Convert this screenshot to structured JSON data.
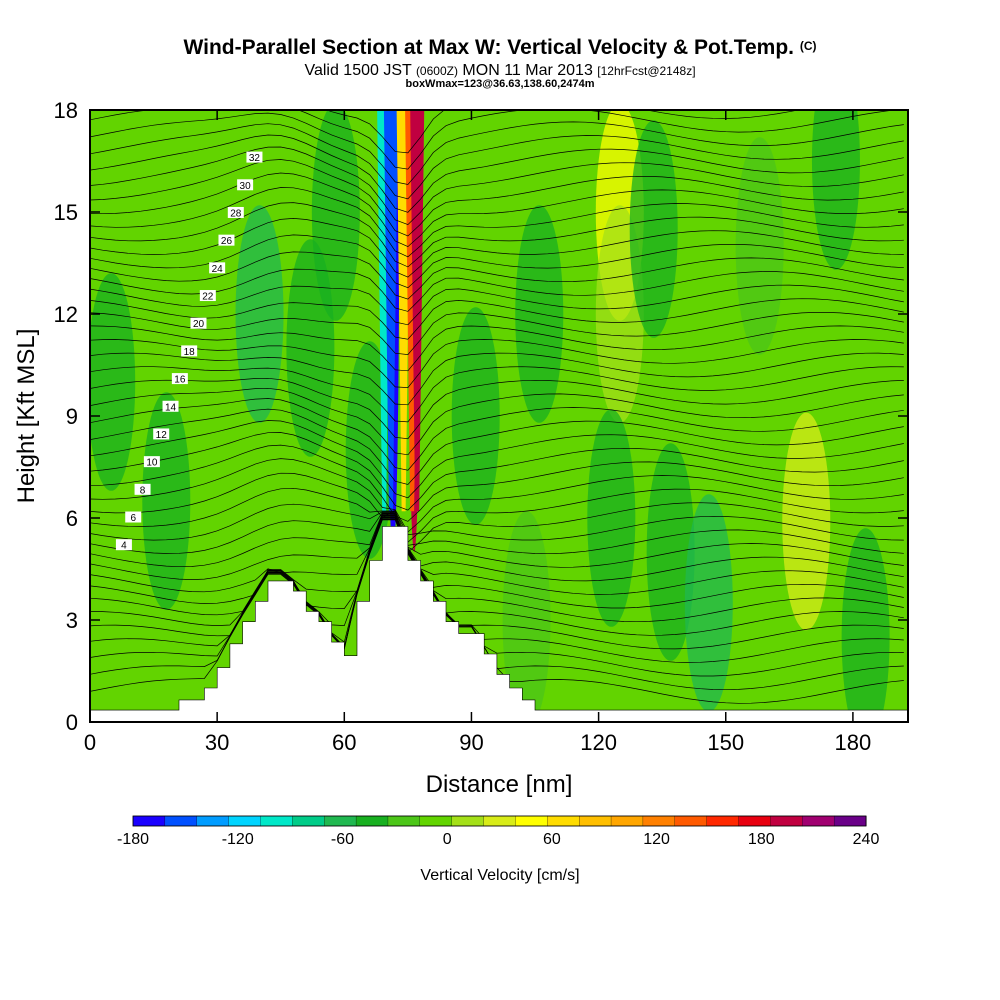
{
  "header": {
    "title": "Wind-Parallel Section at Max W: Vertical Velocity & Pot.Temp.",
    "title_mark": "(C)",
    "valid_prefix": "Valid 1500 JST",
    "valid_utc": "(0600Z)",
    "valid_date": "MON 11 Mar 2013",
    "forecast": "[12hrFcst@2148z]",
    "boxmax": "boxWmax=123@36.63,138.60,2474m"
  },
  "chart_data": {
    "type": "heatmap",
    "xlabel": "Distance [nm]",
    "ylabel": "Height [Kft MSL]",
    "xlim": [
      0,
      193
    ],
    "ylim": [
      0,
      18
    ],
    "x_ticks": [
      0,
      30,
      60,
      90,
      120,
      150,
      180
    ],
    "y_ticks": [
      0,
      3,
      6,
      9,
      12,
      15,
      18
    ],
    "grid": false,
    "colorbar": {
      "label": "Vertical Velocity [cm/s]",
      "min": -180,
      "max": 240,
      "step": 20,
      "tick_values": [
        -180,
        -120,
        -60,
        0,
        60,
        120,
        180,
        240
      ],
      "colors": [
        "#1a00ff",
        "#0050ff",
        "#009cff",
        "#00d4ff",
        "#00e8c8",
        "#00cc88",
        "#20b850",
        "#18b020",
        "#4cc618",
        "#62d400",
        "#a4e018",
        "#d8ec18",
        "#ffff00",
        "#ffdc00",
        "#ffbf00",
        "#ffa600",
        "#ff8000",
        "#ff5a00",
        "#ff2800",
        "#e80010",
        "#c00040",
        "#a00070",
        "#6a0088"
      ]
    },
    "theta_contour_labels": [
      4,
      6,
      8,
      10,
      12,
      14,
      16,
      18,
      20,
      22,
      24,
      26,
      28,
      30,
      32
    ],
    "terrain_kft": [
      [
        0,
        0.35
      ],
      [
        21,
        0.35
      ],
      [
        21,
        0.65
      ],
      [
        27,
        0.65
      ],
      [
        27,
        1.0
      ],
      [
        30,
        1.0
      ],
      [
        30,
        1.6
      ],
      [
        33,
        1.6
      ],
      [
        33,
        2.3
      ],
      [
        36,
        2.3
      ],
      [
        36,
        2.95
      ],
      [
        39,
        2.95
      ],
      [
        39,
        3.55
      ],
      [
        42,
        3.55
      ],
      [
        42,
        4.15
      ],
      [
        48,
        4.15
      ],
      [
        48,
        3.85
      ],
      [
        51,
        3.85
      ],
      [
        51,
        3.25
      ],
      [
        54,
        3.25
      ],
      [
        54,
        2.95
      ],
      [
        57,
        2.95
      ],
      [
        57,
        2.35
      ],
      [
        60,
        2.35
      ],
      [
        60,
        1.95
      ],
      [
        63,
        1.95
      ],
      [
        63,
        3.55
      ],
      [
        66,
        3.55
      ],
      [
        66,
        4.75
      ],
      [
        69,
        4.75
      ],
      [
        69,
        5.75
      ],
      [
        75,
        5.75
      ],
      [
        75,
        4.75
      ],
      [
        78,
        4.75
      ],
      [
        78,
        4.15
      ],
      [
        81,
        4.15
      ],
      [
        81,
        3.55
      ],
      [
        84,
        3.55
      ],
      [
        84,
        2.95
      ],
      [
        87,
        2.95
      ],
      [
        87,
        2.6
      ],
      [
        93,
        2.6
      ],
      [
        93,
        2.0
      ],
      [
        96,
        2.0
      ],
      [
        96,
        1.4
      ],
      [
        99,
        1.4
      ],
      [
        99,
        1.0
      ],
      [
        102,
        1.0
      ],
      [
        102,
        0.65
      ],
      [
        105,
        0.65
      ],
      [
        105,
        0.35
      ],
      [
        193,
        0.35
      ]
    ],
    "updraft_core_nm": 76,
    "downdraft_core_nm": 71,
    "w_max_cm_s": 123,
    "w_field": [
      {
        "x": 5,
        "y": 10,
        "w": -50
      },
      {
        "x": 18,
        "y": 6.5,
        "w": -40
      },
      {
        "x": 40,
        "y": 12,
        "w": -60
      },
      {
        "x": 52,
        "y": 11,
        "w": -40
      },
      {
        "x": 58,
        "y": 15,
        "w": -50
      },
      {
        "x": 66,
        "y": 8,
        "w": -45
      },
      {
        "x": 71.5,
        "y": 14,
        "w": -170
      },
      {
        "x": 76.5,
        "y": 14,
        "w": 200
      },
      {
        "x": 91,
        "y": 9,
        "w": -40
      },
      {
        "x": 103,
        "y": 3,
        "w": -30
      },
      {
        "x": 106,
        "y": 12,
        "w": -35
      },
      {
        "x": 125,
        "y": 15,
        "w": 40
      },
      {
        "x": 125,
        "y": 12,
        "w": 20
      },
      {
        "x": 123,
        "y": 6,
        "w": -50
      },
      {
        "x": 133,
        "y": 14.5,
        "w": -40
      },
      {
        "x": 137,
        "y": 5,
        "w": -45
      },
      {
        "x": 146,
        "y": 3.5,
        "w": -60
      },
      {
        "x": 158,
        "y": 14,
        "w": -30
      },
      {
        "x": 169,
        "y": 5.9,
        "w": 30
      },
      {
        "x": 176,
        "y": 16.5,
        "w": -40
      },
      {
        "x": 183,
        "y": 2.5,
        "w": -45
      }
    ]
  }
}
